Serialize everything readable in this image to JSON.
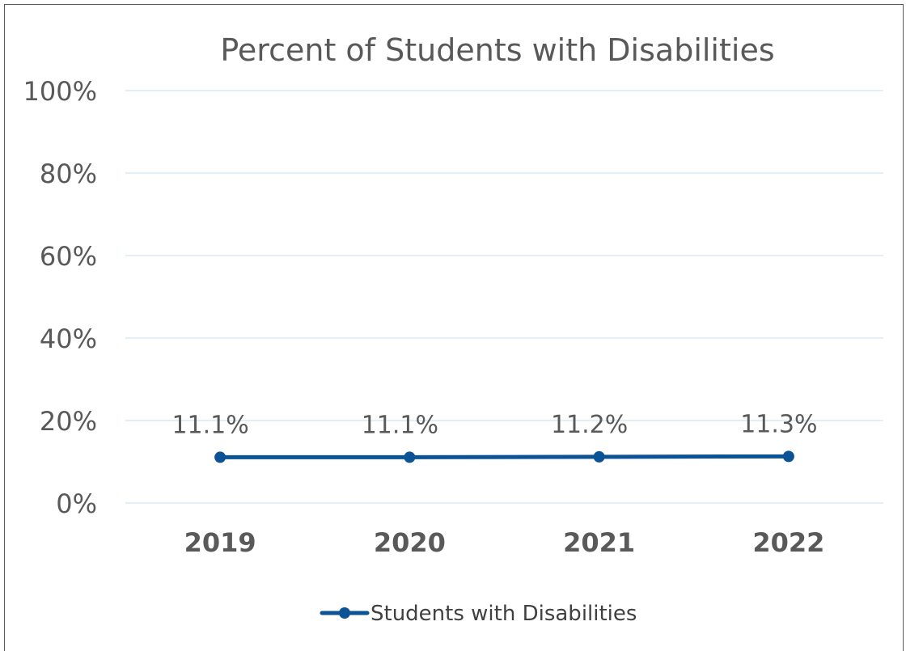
{
  "chart_data": {
    "type": "line",
    "title": "Percent of Students with Disabilities",
    "categories": [
      "2019",
      "2020",
      "2021",
      "2022"
    ],
    "series": [
      {
        "name": "Students with Disabilities",
        "values": [
          11.1,
          11.1,
          11.2,
          11.3
        ],
        "labels": [
          "11.1%",
          "11.1%",
          "11.2%",
          "11.3%"
        ],
        "color": "#0B5394"
      }
    ],
    "yticks": [
      "0%",
      "20%",
      "40%",
      "60%",
      "80%",
      "100%"
    ],
    "ylim": [
      0,
      100
    ],
    "xlabel": "",
    "ylabel": "",
    "grid": true,
    "gridColor": "#D6EAF8",
    "legend": "bottom"
  }
}
